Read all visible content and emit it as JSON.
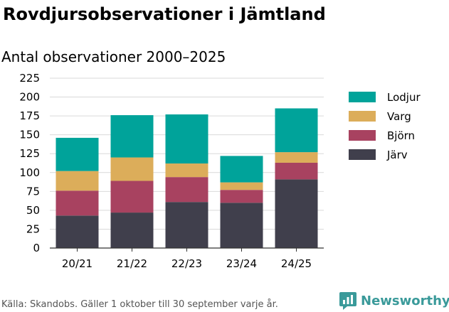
{
  "header": {
    "title": "Rovdjursobservationer i Jämtland",
    "subtitle": "Antal observationer 2000–2025"
  },
  "footer": {
    "source": "Källa: Skandobs. Gäller 1 oktober till 30 september varje år.",
    "brand": "Newsworthy"
  },
  "colors": {
    "Lodjur": "#00a39a",
    "Varg": "#dcad5a",
    "Björn": "#a84260",
    "Järv": "#403f4c",
    "grid": "#d9d9d9",
    "brand": "#3a9a9a"
  },
  "chart_data": {
    "type": "bar",
    "stacked": true,
    "title": "Rovdjursobservationer i Jämtland",
    "subtitle": "Antal observationer 2000–2025",
    "xlabel": "",
    "ylabel": "",
    "ylim": [
      0,
      225
    ],
    "yticks": [
      0,
      25,
      50,
      75,
      100,
      125,
      150,
      175,
      200,
      225
    ],
    "grid": true,
    "legend_position": "right",
    "categories": [
      "20/21",
      "21/22",
      "22/23",
      "23/24",
      "24/25"
    ],
    "series": [
      {
        "name": "Järv",
        "values": [
          43,
          47,
          61,
          60,
          91
        ]
      },
      {
        "name": "Björn",
        "values": [
          33,
          42,
          33,
          17,
          22
        ]
      },
      {
        "name": "Varg",
        "values": [
          26,
          31,
          18,
          10,
          14
        ]
      },
      {
        "name": "Lodjur",
        "values": [
          44,
          56,
          65,
          35,
          58
        ]
      }
    ],
    "legend_order": [
      "Lodjur",
      "Varg",
      "Björn",
      "Järv"
    ]
  }
}
